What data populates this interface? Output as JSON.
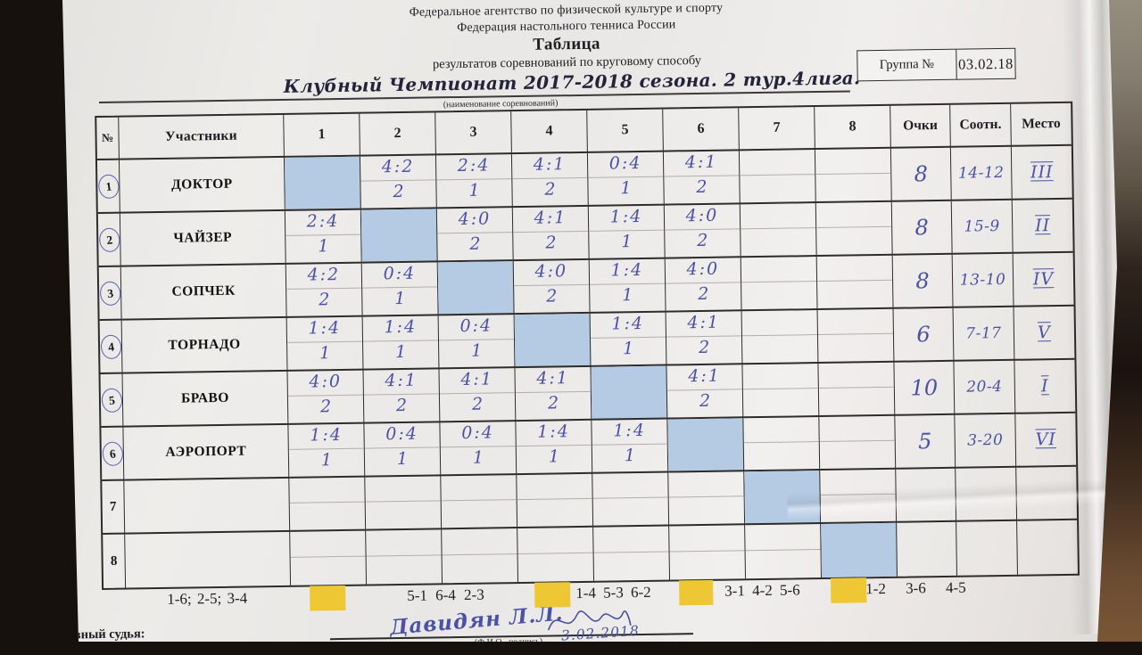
{
  "header": {
    "org_line1": "Федеральное агентство по физической культуре и спорту",
    "org_line2": "Федерация настольного тенниса России",
    "title": "Таблица",
    "subtitle": "результатов соревнований по круговому способу",
    "competition_name": "Клубный Чемпионат 2017-2018 сезона. 2 тур.4лига.",
    "competition_caption": "(наименование соревнований)",
    "group_label": "Группа №",
    "group_date": "03.02.18"
  },
  "table": {
    "headers": {
      "num": "№",
      "participants": "Участники",
      "rounds": [
        "1",
        "2",
        "3",
        "4",
        "5",
        "6",
        "7",
        "8"
      ],
      "points": "Очки",
      "ratio": "Соотн.",
      "place": "Место"
    },
    "rows": [
      {
        "num": "1",
        "circled": true,
        "name": "ДОКТОР",
        "games": [
          {
            "diag": true
          },
          {
            "score": "4:2",
            "pts": "2"
          },
          {
            "score": "2:4",
            "pts": "1"
          },
          {
            "score": "4:1",
            "pts": "2"
          },
          {
            "score": "0:4",
            "pts": "1"
          },
          {
            "score": "4:1",
            "pts": "2"
          },
          {},
          {}
        ],
        "points": "8",
        "ratio": "14-12",
        "place": "III"
      },
      {
        "num": "2",
        "circled": true,
        "name": "ЧАЙЗЕР",
        "games": [
          {
            "score": "2:4",
            "pts": "1"
          },
          {
            "diag": true
          },
          {
            "score": "4:0",
            "pts": "2"
          },
          {
            "score": "4:1",
            "pts": "2"
          },
          {
            "score": "1:4",
            "pts": "1"
          },
          {
            "score": "4:0",
            "pts": "2"
          },
          {},
          {}
        ],
        "points": "8",
        "ratio": "15-9",
        "place": "II"
      },
      {
        "num": "3",
        "circled": true,
        "name": "СОПЧЕК",
        "games": [
          {
            "score": "4:2",
            "pts": "2"
          },
          {
            "score": "0:4",
            "pts": "1"
          },
          {
            "diag": true
          },
          {
            "score": "4:0",
            "pts": "2"
          },
          {
            "score": "1:4",
            "pts": "1"
          },
          {
            "score": "4:0",
            "pts": "2"
          },
          {},
          {}
        ],
        "points": "8",
        "ratio": "13-10",
        "place": "IV"
      },
      {
        "num": "4",
        "circled": true,
        "name": "ТОРНАДО",
        "games": [
          {
            "score": "1:4",
            "pts": "1"
          },
          {
            "score": "1:4",
            "pts": "1"
          },
          {
            "score": "0:4",
            "pts": "1"
          },
          {
            "diag": true
          },
          {
            "score": "1:4",
            "pts": "1"
          },
          {
            "score": "4:1",
            "pts": "2"
          },
          {},
          {}
        ],
        "points": "6",
        "ratio": "7-17",
        "place": "V"
      },
      {
        "num": "5",
        "circled": true,
        "name": "БРАВО",
        "games": [
          {
            "score": "4:0",
            "pts": "2"
          },
          {
            "score": "4:1",
            "pts": "2"
          },
          {
            "score": "4:1",
            "pts": "2"
          },
          {
            "score": "4:1",
            "pts": "2"
          },
          {
            "diag": true
          },
          {
            "score": "4:1",
            "pts": "2"
          },
          {},
          {}
        ],
        "points": "10",
        "ratio": "20-4",
        "place": "I"
      },
      {
        "num": "6",
        "circled": true,
        "name": "АЭРОПОРТ",
        "games": [
          {
            "score": "1:4",
            "pts": "1"
          },
          {
            "score": "0:4",
            "pts": "1"
          },
          {
            "score": "0:4",
            "pts": "1"
          },
          {
            "score": "1:4",
            "pts": "1"
          },
          {
            "score": "1:4",
            "pts": "1"
          },
          {
            "diag": true
          },
          {},
          {}
        ],
        "points": "5",
        "ratio": "3-20",
        "place": "VI"
      },
      {
        "num": "7",
        "circled": false,
        "name": "",
        "games": [
          {},
          {},
          {},
          {},
          {},
          {},
          {
            "diag": true
          },
          {}
        ],
        "points": "",
        "ratio": "",
        "place": ""
      },
      {
        "num": "8",
        "circled": false,
        "name": "",
        "games": [
          {},
          {},
          {},
          {},
          {},
          {},
          {},
          {
            "diag": true
          }
        ],
        "points": "",
        "ratio": "",
        "place": ""
      }
    ]
  },
  "schedule": {
    "items": [
      {
        "type": "text",
        "text": "1-6; 2-5; 3-4"
      },
      {
        "type": "highlight"
      },
      {
        "type": "text",
        "text": "5-1 6-4 2-3"
      },
      {
        "type": "highlight"
      },
      {
        "type": "text",
        "text": "1-4 5-3 6-2"
      },
      {
        "type": "highlight"
      },
      {
        "type": "text",
        "text": "3-1 4-2 5-6"
      },
      {
        "type": "highlight"
      },
      {
        "type": "text",
        "text": "1-2 3-6 4-5"
      }
    ]
  },
  "footer": {
    "judge_label": "Главный судья:",
    "signature": "Давидян Л.Л.",
    "fio_caption": "(Ф.И.О., подпись)",
    "date": "3.02.2018"
  },
  "colors": {
    "pen_ink": "#4b51a5",
    "print_ink": "#1d1d22",
    "grid_line": "#2e2c2a",
    "diagonal_cell": "#b5cae3",
    "highlight_yellow": "#eec734",
    "paper": "#eceae7"
  }
}
